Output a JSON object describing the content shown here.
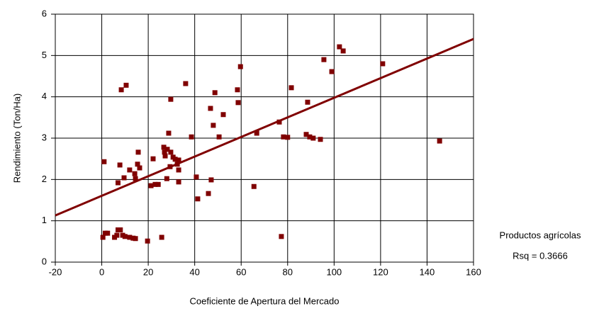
{
  "chart_data": {
    "type": "scatter",
    "x_label": "Coeficiente de Apertura del Mercado",
    "y_label": "Rendimiento (Ton/Ha)",
    "annotations": [
      "Productos agrícolas",
      "Rsq = 0.3666"
    ],
    "color": "#800000",
    "x": [
      1,
      0.5,
      1.5,
      2.5,
      5.5,
      6.5,
      7,
      8,
      9,
      10,
      12,
      13.5,
      14.5,
      7.8,
      7,
      8.4,
      10.5,
      9.6,
      12,
      14.2,
      14.5,
      15.7,
      15.4,
      16.3,
      19.7,
      21.2,
      22.1,
      23,
      24.3,
      25.8,
      26.7,
      27,
      28,
      28.2,
      27.3,
      28.8,
      29.7,
      29.4,
      29.7,
      30.7,
      31.6,
      32.5,
      33.1,
      33.1,
      33.1,
      36.1,
      38.6,
      40.7,
      41.3,
      45.9,
      46.8,
      47.1,
      48,
      48.7,
      50.5,
      52.3,
      58.4,
      58.7,
      59.7,
      65.5,
      66.7,
      76.4,
      77.3,
      78.2,
      80,
      81.6,
      88,
      88.6,
      89.5,
      91,
      94.1,
      95.6,
      99,
      102.3,
      103.9,
      120.9,
      145.4
    ],
    "values": [
      2.43,
      0.6,
      0.7,
      0.7,
      0.6,
      0.65,
      0.78,
      0.78,
      0.65,
      0.62,
      0.6,
      0.58,
      0.57,
      2.35,
      1.92,
      4.17,
      4.28,
      2.04,
      2.23,
      2.14,
      2.02,
      2.66,
      2.37,
      2.28,
      0.51,
      1.85,
      2.5,
      1.88,
      1.88,
      0.6,
      2.78,
      2.66,
      2.02,
      2.73,
      2.57,
      3.12,
      3.94,
      2.31,
      2.66,
      2.54,
      2.49,
      2.37,
      2.47,
      2.23,
      1.94,
      4.32,
      3.03,
      2.06,
      1.53,
      1.66,
      3.72,
      1.99,
      3.31,
      4.1,
      3.03,
      3.57,
      4.17,
      3.86,
      4.73,
      1.83,
      3.12,
      3.39,
      0.62,
      3.03,
      3.02,
      4.22,
      3.09,
      3.87,
      3.03,
      3.0,
      2.97,
      4.9,
      4.61,
      5.21,
      5.11,
      4.8,
      2.93
    ],
    "fit": {
      "x": [
        -20,
        160
      ],
      "values": [
        1.13,
        5.4
      ],
      "color": "#800000"
    },
    "xlim": [
      -20,
      160
    ],
    "xticks": [
      -20,
      0,
      20,
      40,
      60,
      80,
      100,
      120,
      140,
      160
    ],
    "ylim": [
      0,
      6
    ],
    "yticks": [
      0,
      1,
      2,
      3,
      4,
      5,
      6
    ],
    "grid": true
  }
}
